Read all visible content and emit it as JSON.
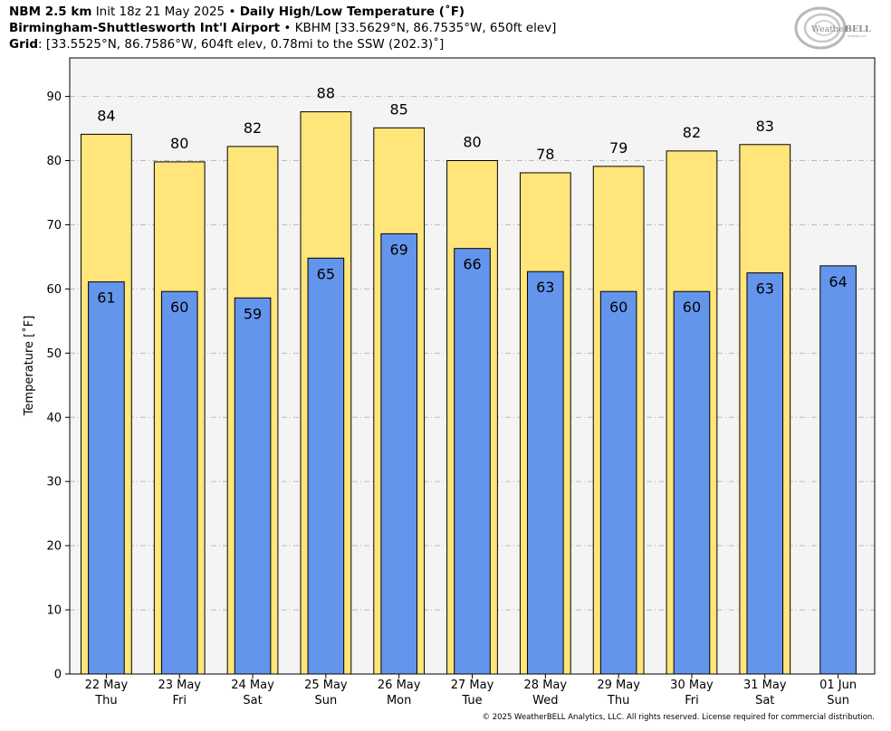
{
  "header": {
    "line1": {
      "model": "NBM 2.5 km",
      "init": "Init 18z 21 May 2025",
      "sep": "•",
      "product": "Daily High/Low Temperature (˚F)"
    },
    "line2": {
      "station": "Birmingham-Shuttlesworth Int'l Airport",
      "sep": "•",
      "detail": "KBHM [33.5629°N, 86.7535°W, 650ft elev]"
    },
    "line3": {
      "label": "Grid",
      "detail": ": [33.5525°N, 86.7586°W, 604ft elev, 0.78mi to the SSW (202.3)˚]"
    }
  },
  "logo": {
    "text_weather": "Weather",
    "text_bell": "BELL",
    "sub": "Analytics LLC"
  },
  "footer": "© 2025 WeatherBELL Analytics, LLC. All rights reserved. License required for commercial distribution.",
  "colors": {
    "high": "#ffe57a",
    "low": "#6495ed",
    "plot_bg": "#f4f4f4",
    "grid": "#bbbbbb"
  },
  "chart_data": {
    "type": "bar",
    "ylabel": "Temperature [˚F]",
    "ylim": [
      0,
      96
    ],
    "yticks": [
      0,
      10,
      20,
      30,
      40,
      50,
      60,
      70,
      80,
      90
    ],
    "grid": true,
    "categories": [
      {
        "date": "22 May",
        "day": "Thu"
      },
      {
        "date": "23 May",
        "day": "Fri"
      },
      {
        "date": "24 May",
        "day": "Sat"
      },
      {
        "date": "25 May",
        "day": "Sun"
      },
      {
        "date": "26 May",
        "day": "Mon"
      },
      {
        "date": "27 May",
        "day": "Tue"
      },
      {
        "date": "28 May",
        "day": "Wed"
      },
      {
        "date": "29 May",
        "day": "Thu"
      },
      {
        "date": "30 May",
        "day": "Fri"
      },
      {
        "date": "31 May",
        "day": "Sat"
      },
      {
        "date": "01 Jun",
        "day": "Sun"
      }
    ],
    "series": [
      {
        "key": "high",
        "values": [
          84.1,
          79.8,
          82.2,
          87.6,
          85.1,
          80.0,
          78.1,
          79.1,
          81.5,
          82.5,
          null
        ],
        "labels": [
          "84",
          "80",
          "82",
          "88",
          "85",
          "80",
          "78",
          "79",
          "82",
          "83",
          ""
        ]
      },
      {
        "key": "low",
        "values": [
          61.1,
          59.6,
          58.6,
          64.8,
          68.6,
          66.3,
          62.7,
          59.6,
          59.6,
          62.5,
          63.6
        ],
        "labels": [
          "61",
          "60",
          "59",
          "65",
          "69",
          "66",
          "63",
          "60",
          "60",
          "63",
          "64"
        ]
      }
    ]
  }
}
